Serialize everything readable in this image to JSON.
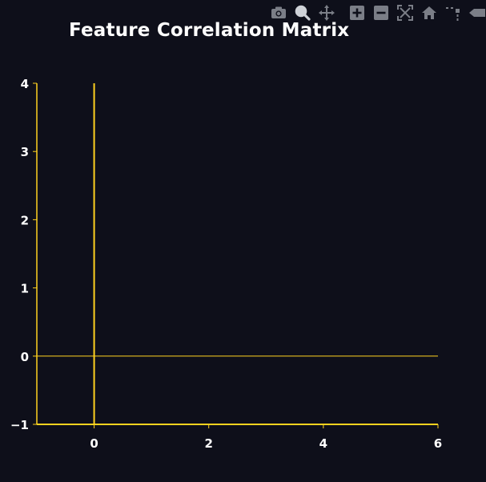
{
  "chart_data": {
    "type": "scatter",
    "title": "Feature Correlation Matrix",
    "xlabel": "",
    "ylabel": "",
    "xlim": [
      -1,
      6
    ],
    "ylim": [
      -1,
      4
    ],
    "x_ticks": [
      0,
      2,
      4,
      6
    ],
    "y_ticks": [
      -1,
      0,
      1,
      2,
      3,
      4
    ],
    "x_tick_labels": [
      "0",
      "2",
      "4",
      "6"
    ],
    "y_tick_labels": [
      "−1",
      "0",
      "1",
      "2",
      "3",
      "4"
    ],
    "zero_lines": true,
    "grid": false,
    "legend": "none",
    "series": []
  },
  "colors": {
    "background": "#0e0f1a",
    "axis": "#ffd21f",
    "text": "#ffffff",
    "modebar_icon": "#7b7e87"
  },
  "modebar": {
    "buttons": [
      {
        "icon": "camera-icon",
        "tooltip": "Download plot as a png"
      },
      {
        "icon": "zoom-icon",
        "tooltip": "Zoom"
      },
      {
        "icon": "pan-icon",
        "tooltip": "Pan"
      },
      {
        "icon": "zoom-in-icon",
        "tooltip": "Zoom in"
      },
      {
        "icon": "zoom-out-icon",
        "tooltip": "Zoom out"
      },
      {
        "icon": "autoscale-icon",
        "tooltip": "Autoscale"
      },
      {
        "icon": "home-icon",
        "tooltip": "Reset axes"
      },
      {
        "icon": "spike-lines-icon",
        "tooltip": "Toggle Spike Lines"
      },
      {
        "icon": "hover-closest-icon",
        "tooltip": "Show closest data on hover"
      }
    ]
  }
}
